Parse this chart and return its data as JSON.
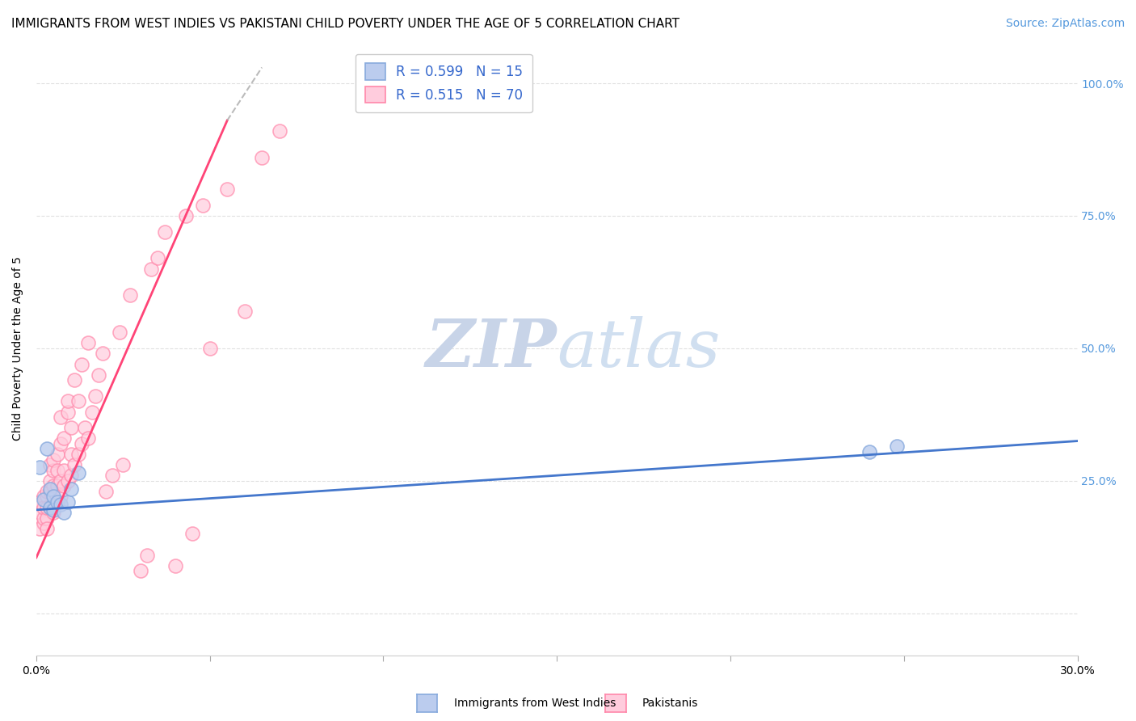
{
  "title": "IMMIGRANTS FROM WEST INDIES VS PAKISTANI CHILD POVERTY UNDER THE AGE OF 5 CORRELATION CHART",
  "source": "Source: ZipAtlas.com",
  "xlabel_blue": "Immigrants from West Indies",
  "xlabel_pink": "Pakistanis",
  "ylabel": "Child Poverty Under the Age of 5",
  "xmin": 0.0,
  "xmax": 0.3,
  "ymin": -0.08,
  "ymax": 1.08,
  "yticks": [
    0.0,
    0.25,
    0.5,
    0.75,
    1.0
  ],
  "ytick_right_labels": [
    "",
    "25.0%",
    "50.0%",
    "75.0%",
    "100.0%"
  ],
  "xticks": [
    0.0,
    0.05,
    0.1,
    0.15,
    0.2,
    0.25,
    0.3
  ],
  "xtick_labels": [
    "0.0%",
    "",
    "",
    "",
    "",
    "",
    "30.0%"
  ],
  "R_blue": 0.599,
  "N_blue": 15,
  "R_pink": 0.515,
  "N_pink": 70,
  "blue_color": "#88AADD",
  "blue_fill": "#bbccee",
  "pink_color": "#FF88AA",
  "pink_fill": "#ffccdd",
  "blue_line_color": "#4477CC",
  "pink_line_color": "#FF4477",
  "watermark_color": "#d0dff0",
  "grid_color": "#e0e0e0",
  "background_color": "#ffffff",
  "title_fontsize": 11,
  "axis_label_fontsize": 10,
  "tick_fontsize": 10,
  "legend_fontsize": 12,
  "source_fontsize": 10,
  "blue_scatter_x": [
    0.001,
    0.002,
    0.003,
    0.004,
    0.004,
    0.005,
    0.005,
    0.006,
    0.007,
    0.008,
    0.009,
    0.01,
    0.012,
    0.24,
    0.248
  ],
  "blue_scatter_y": [
    0.275,
    0.215,
    0.31,
    0.2,
    0.235,
    0.22,
    0.195,
    0.21,
    0.205,
    0.19,
    0.21,
    0.235,
    0.265,
    0.305,
    0.315
  ],
  "pink_scatter_x": [
    0.001,
    0.001,
    0.001,
    0.002,
    0.002,
    0.002,
    0.002,
    0.003,
    0.003,
    0.003,
    0.003,
    0.003,
    0.004,
    0.004,
    0.004,
    0.004,
    0.005,
    0.005,
    0.005,
    0.005,
    0.005,
    0.006,
    0.006,
    0.006,
    0.006,
    0.007,
    0.007,
    0.007,
    0.007,
    0.008,
    0.008,
    0.008,
    0.009,
    0.009,
    0.009,
    0.01,
    0.01,
    0.01,
    0.011,
    0.011,
    0.012,
    0.012,
    0.013,
    0.013,
    0.014,
    0.015,
    0.015,
    0.016,
    0.017,
    0.018,
    0.019,
    0.02,
    0.022,
    0.024,
    0.025,
    0.027,
    0.03,
    0.032,
    0.033,
    0.035,
    0.037,
    0.04,
    0.043,
    0.045,
    0.048,
    0.05,
    0.055,
    0.06,
    0.065,
    0.07
  ],
  "pink_scatter_y": [
    0.19,
    0.21,
    0.16,
    0.17,
    0.22,
    0.18,
    0.2,
    0.18,
    0.22,
    0.23,
    0.2,
    0.16,
    0.2,
    0.23,
    0.25,
    0.28,
    0.19,
    0.22,
    0.24,
    0.27,
    0.29,
    0.21,
    0.24,
    0.27,
    0.3,
    0.22,
    0.25,
    0.32,
    0.37,
    0.24,
    0.27,
    0.33,
    0.25,
    0.38,
    0.4,
    0.26,
    0.3,
    0.35,
    0.28,
    0.44,
    0.3,
    0.4,
    0.32,
    0.47,
    0.35,
    0.33,
    0.51,
    0.38,
    0.41,
    0.45,
    0.49,
    0.23,
    0.26,
    0.53,
    0.28,
    0.6,
    0.08,
    0.11,
    0.65,
    0.67,
    0.72,
    0.09,
    0.75,
    0.15,
    0.77,
    0.5,
    0.8,
    0.57,
    0.86,
    0.91
  ],
  "pink_line_x0": 0.0,
  "pink_line_y0": 0.105,
  "pink_line_x1": 0.055,
  "pink_line_y1": 0.93,
  "pink_line_dash_x1": 0.065,
  "pink_line_dash_y1": 1.03,
  "blue_line_x0": 0.0,
  "blue_line_y0": 0.195,
  "blue_line_x1": 0.3,
  "blue_line_y1": 0.325
}
